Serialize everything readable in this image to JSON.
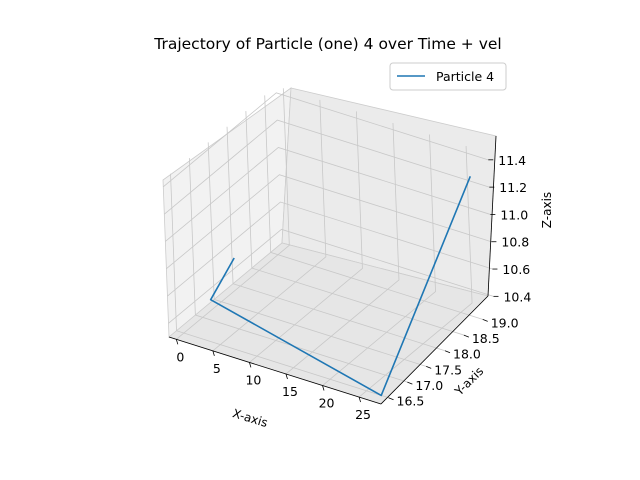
{
  "chart_data": {
    "type": "line",
    "projection": "3d",
    "title": "Trajectory of Particle (one) 4 over Time + vel",
    "xlabel": "X-axis",
    "ylabel": "Y-axis",
    "zlabel": "Z-axis",
    "xticks": [
      "0",
      "5",
      "10",
      "15",
      "20",
      "25"
    ],
    "yticks": [
      "16.5",
      "17.0",
      "17.5",
      "18.0",
      "18.5",
      "19.0"
    ],
    "zticks": [
      "10.4",
      "10.6",
      "10.8",
      "11.0",
      "11.2",
      "11.4"
    ],
    "xlim": [
      -1,
      28
    ],
    "ylim": [
      16.3,
      19.3
    ],
    "zlim": [
      10.3,
      11.45
    ],
    "grid": true,
    "legend": {
      "position": "top-right",
      "entries": [
        "Particle 4"
      ]
    },
    "series": [
      {
        "name": "Particle 4",
        "color": "#1f77b4",
        "x": [
          3.6,
          1.2,
          27.0,
          26.5
        ],
        "y": [
          17.2,
          17.0,
          16.5,
          19.1
        ],
        "z": [
          10.75,
          10.45,
          10.3,
          11.3
        ]
      }
    ]
  }
}
